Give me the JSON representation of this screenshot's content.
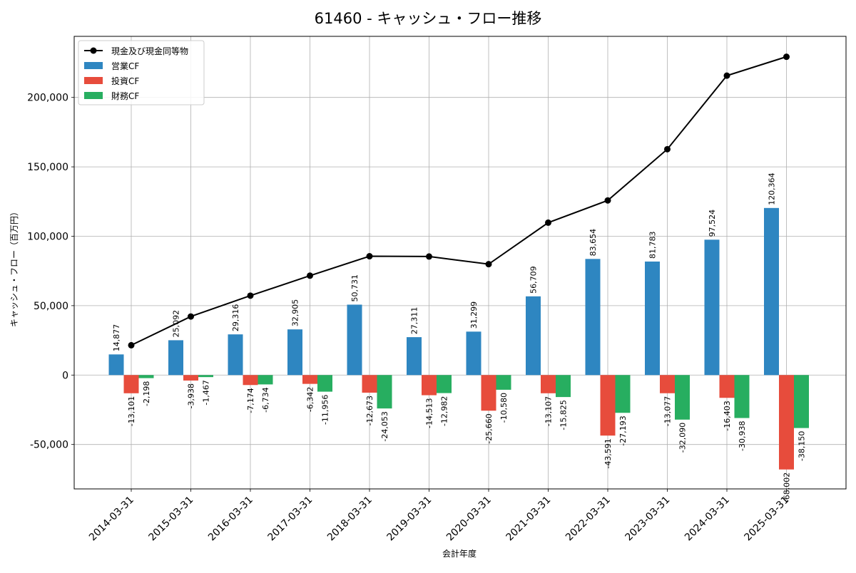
{
  "chart_data": {
    "type": "bar",
    "title": "61460 - キャッシュ・フロー推移",
    "xlabel": "会計年度",
    "ylabel": "キャッシュ・フロー（百万円）",
    "ylim": [
      -82000,
      244000
    ],
    "yticks": [
      -50000,
      0,
      50000,
      100000,
      150000,
      200000
    ],
    "ytick_labels": [
      "-50,000",
      "0",
      "50,000",
      "100,000",
      "150,000",
      "200,000"
    ],
    "grid": true,
    "legend_position": "top-left",
    "categories": [
      "2014-03-31",
      "2015-03-31",
      "2016-03-31",
      "2017-03-31",
      "2018-03-31",
      "2019-03-31",
      "2020-03-31",
      "2021-03-31",
      "2022-03-31",
      "2023-03-31",
      "2024-03-31",
      "2025-03-31"
    ],
    "series": [
      {
        "name": "営業CF",
        "kind": "bar",
        "color": "#2e86c1",
        "values": [
          14877,
          25092,
          29316,
          32905,
          50731,
          27311,
          31299,
          56709,
          83654,
          81783,
          97524,
          120364
        ],
        "labels": [
          "14,877",
          "25,092",
          "29,316",
          "32,905",
          "50,731",
          "27,311",
          "31,299",
          "56,709",
          "83,654",
          "81,783",
          "97,524",
          "120,364"
        ]
      },
      {
        "name": "投資CF",
        "kind": "bar",
        "color": "#e74c3c",
        "values": [
          -13101,
          -3938,
          -7174,
          -6342,
          -12673,
          -14513,
          -25660,
          -13107,
          -43591,
          -13077,
          -16403,
          -68002
        ],
        "labels": [
          "-13,101",
          "-3,938",
          "-7,174",
          "-6,342",
          "-12,673",
          "-14,513",
          "-25,660",
          "-13,107",
          "-43,591",
          "-13,077",
          "-16,403",
          "-68,002"
        ]
      },
      {
        "name": "財務CF",
        "kind": "bar",
        "color": "#27ae60",
        "values": [
          -2198,
          -1467,
          -6734,
          -11956,
          -24053,
          -12982,
          -10580,
          -15825,
          -27193,
          -32090,
          -30938,
          -38150
        ],
        "labels": [
          "-2,198",
          "-1,467",
          "-6,734",
          "-11,956",
          "-24,053",
          "-12,982",
          "-10,580",
          "-15,825",
          "-27,193",
          "-32,090",
          "-30,938",
          "-38,150"
        ]
      },
      {
        "name": "現金及び現金同等物",
        "kind": "line",
        "color": "#000000",
        "values": [
          21500,
          42200,
          57200,
          71600,
          85600,
          85400,
          79900,
          109800,
          125800,
          162700,
          215700,
          229300
        ]
      }
    ]
  }
}
